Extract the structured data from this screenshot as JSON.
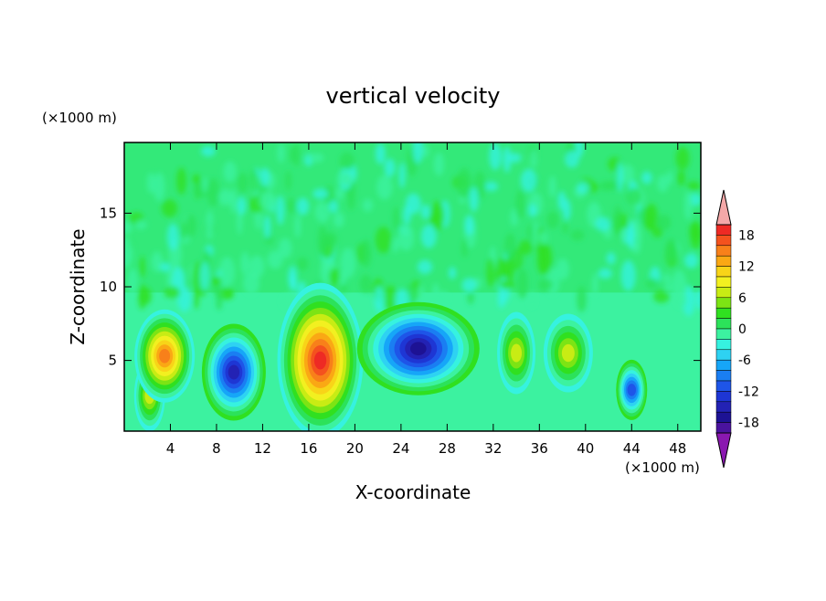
{
  "chart_data": {
    "type": "heatmap",
    "title": "vertical velocity",
    "xlabel": "X-coordinate",
    "ylabel": "Z-coordinate",
    "x_units": "(×1000 m)",
    "y_units": "(×1000 m)",
    "xlim": [
      0,
      50
    ],
    "ylim": [
      0.2,
      19.8
    ],
    "x_ticks": [
      4,
      8,
      12,
      16,
      20,
      24,
      28,
      32,
      36,
      40,
      44,
      48
    ],
    "y_ticks": [
      5,
      10,
      15
    ],
    "colorbar": {
      "levels": [
        -20,
        -18,
        -16,
        -14,
        -12,
        -10,
        -8,
        -6,
        -4,
        -2,
        0,
        2,
        4,
        6,
        8,
        10,
        12,
        14,
        16,
        18,
        20
      ],
      "tick_labels": [
        18,
        12,
        6,
        0,
        -6,
        -12,
        -18
      ],
      "colors": [
        "#8a18b0",
        "#4a139e",
        "#1d1294",
        "#2322b4",
        "#1e36d4",
        "#1e55e8",
        "#1a7ef2",
        "#16a6f8",
        "#2ed2f2",
        "#36f2e0",
        "#3cf2a0",
        "#2ce25a",
        "#30e020",
        "#7ce414",
        "#c8ec14",
        "#f2f020",
        "#f8d418",
        "#faa814",
        "#f8801a",
        "#f4521e",
        "#ee2a24",
        "#f4a8a8"
      ],
      "extend": "both"
    },
    "features": [
      {
        "x": 2.2,
        "z": 2.6,
        "w": 6
      },
      {
        "x": 3.5,
        "z": 5.3,
        "w": 13
      },
      {
        "x": 9.5,
        "z": 4.2,
        "w": -14
      },
      {
        "x": 17,
        "z": 5.0,
        "w": 18
      },
      {
        "x": 25.5,
        "z": 5.8,
        "w": -15
      },
      {
        "x": 34,
        "z": 5.5,
        "w": 6
      },
      {
        "x": 38.5,
        "z": 5.5,
        "w": 5
      },
      {
        "x": 44,
        "z": 3.0,
        "w": -10
      }
    ]
  }
}
